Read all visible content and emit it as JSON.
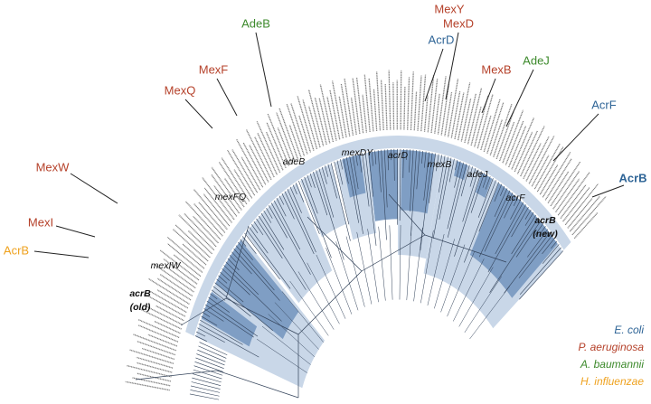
{
  "gene_labels": [
    "MexY",
    "MexD",
    "AcrD",
    "AdeB",
    "MexF",
    "MexQ",
    "MexB",
    "AdeJ",
    "AcrF",
    "AcrB",
    "MexW",
    "MexI",
    "AcrB"
  ],
  "clades": [
    "adeB",
    "mexDY",
    "acrD",
    "mexB",
    "adeJ",
    "acrF",
    "mexFQ",
    "mexIW"
  ],
  "clade_new": [
    "acrB",
    "(new)"
  ],
  "clade_old": [
    "acrB",
    "(old)"
  ],
  "legend": [
    "E. coli",
    "P. aeruginosa",
    "A. baumannii",
    "H. influenzae"
  ]
}
